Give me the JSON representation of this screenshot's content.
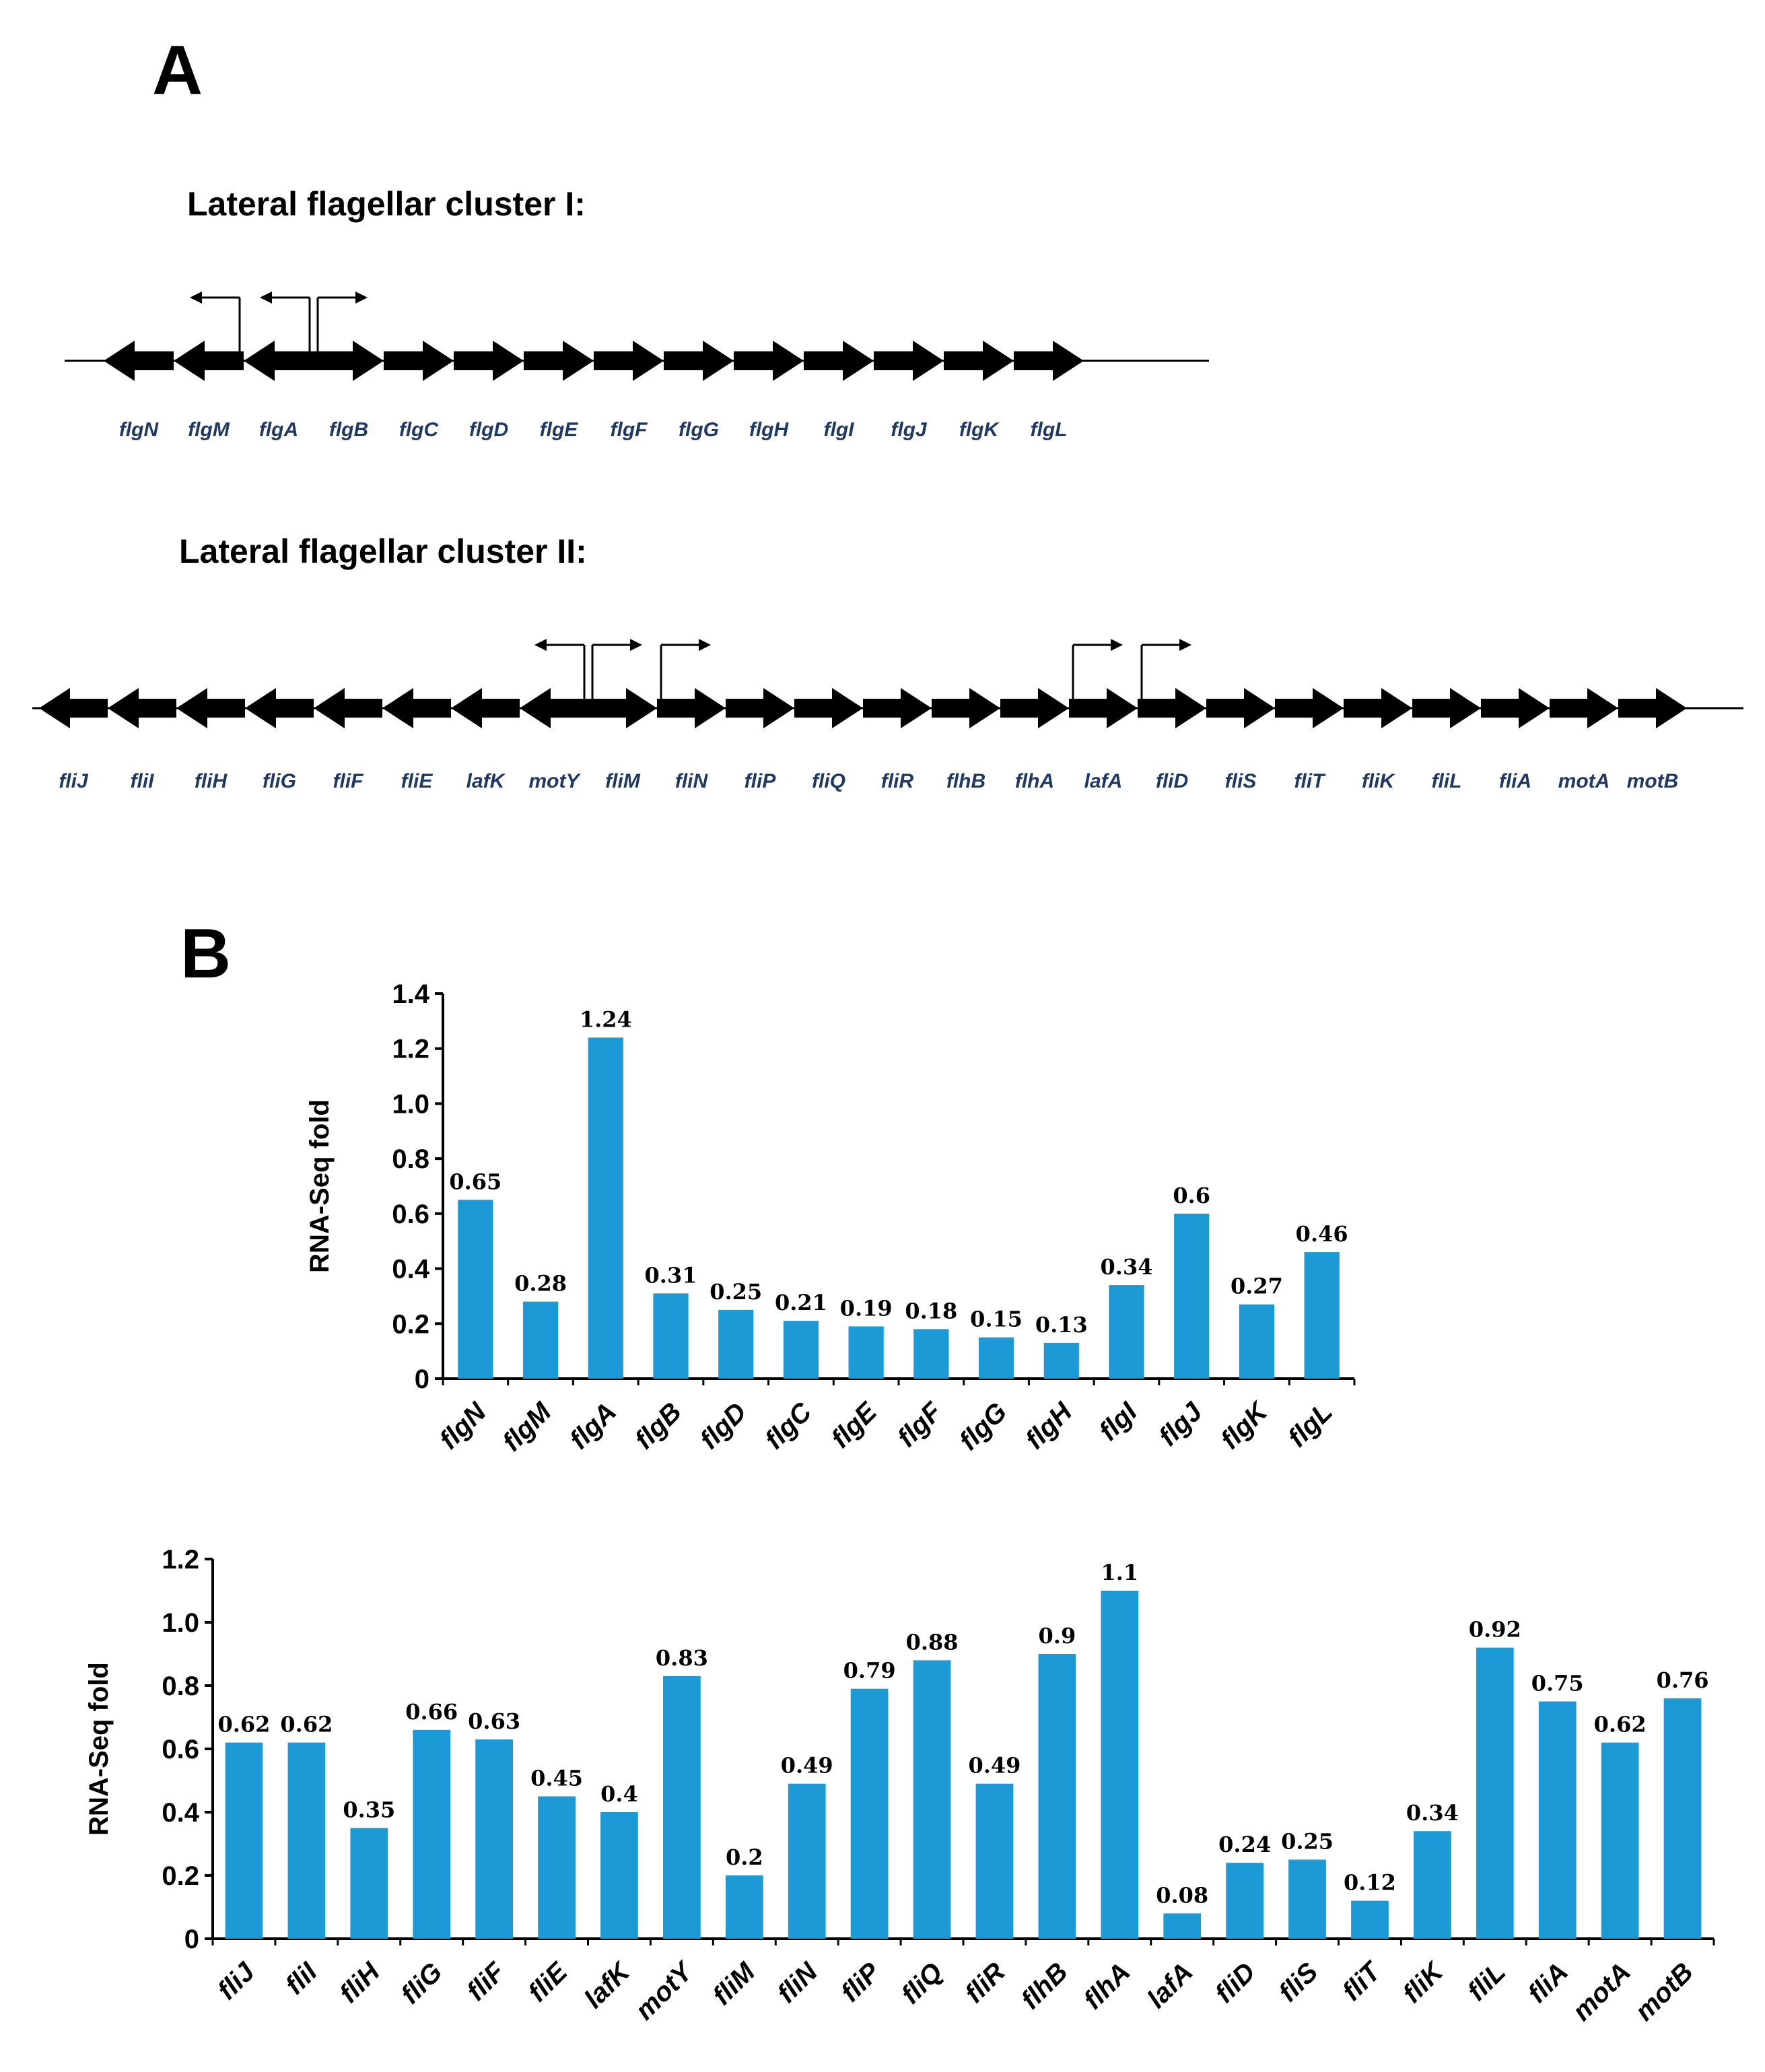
{
  "panel_a": {
    "letter": "A",
    "cluster1": {
      "title": "Lateral flagellar cluster I:",
      "genes": [
        {
          "name": "flgN",
          "dir": "left"
        },
        {
          "name": "flgM",
          "dir": "left"
        },
        {
          "name": "flgA",
          "dir": "left"
        },
        {
          "name": "flgB",
          "dir": "right"
        },
        {
          "name": "flgC",
          "dir": "right"
        },
        {
          "name": "flgD",
          "dir": "right"
        },
        {
          "name": "flgE",
          "dir": "right"
        },
        {
          "name": "flgF",
          "dir": "right"
        },
        {
          "name": "flgG",
          "dir": "right"
        },
        {
          "name": "flgH",
          "dir": "right"
        },
        {
          "name": "flgI",
          "dir": "right"
        },
        {
          "name": "flgJ",
          "dir": "right"
        },
        {
          "name": "flgK",
          "dir": "right"
        },
        {
          "name": "flgL",
          "dir": "right"
        }
      ],
      "promoters": [
        {
          "gene": "flgM",
          "dir": "left"
        },
        {
          "gene": "flgA",
          "dir": "left"
        },
        {
          "gene": "flgB",
          "dir": "right"
        }
      ]
    },
    "cluster2": {
      "title": "Lateral flagellar cluster II:",
      "genes": [
        {
          "name": "fliJ",
          "dir": "left"
        },
        {
          "name": "fliI",
          "dir": "left"
        },
        {
          "name": "fliH",
          "dir": "left"
        },
        {
          "name": "fliG",
          "dir": "left"
        },
        {
          "name": "fliF",
          "dir": "left"
        },
        {
          "name": "fliE",
          "dir": "left"
        },
        {
          "name": "lafK",
          "dir": "left"
        },
        {
          "name": "motY",
          "dir": "left"
        },
        {
          "name": "fliM",
          "dir": "right"
        },
        {
          "name": "fliN",
          "dir": "right"
        },
        {
          "name": "fliP",
          "dir": "right"
        },
        {
          "name": "fliQ",
          "dir": "right"
        },
        {
          "name": "fliR",
          "dir": "right"
        },
        {
          "name": "flhB",
          "dir": "right"
        },
        {
          "name": "flhA",
          "dir": "right"
        },
        {
          "name": "lafA",
          "dir": "right"
        },
        {
          "name": "fliD",
          "dir": "right"
        },
        {
          "name": "fliS",
          "dir": "right"
        },
        {
          "name": "fliT",
          "dir": "right"
        },
        {
          "name": "fliK",
          "dir": "right"
        },
        {
          "name": "fliL",
          "dir": "right"
        },
        {
          "name": "fliA",
          "dir": "right"
        },
        {
          "name": "motA",
          "dir": "right"
        },
        {
          "name": "motB",
          "dir": "right"
        }
      ],
      "promoters": [
        {
          "gene": "motY",
          "dir": "left"
        },
        {
          "gene": "fliM",
          "dir": "right"
        },
        {
          "gene": "fliN",
          "dir": "right"
        },
        {
          "gene": "lafA",
          "dir": "right"
        },
        {
          "gene": "fliD",
          "dir": "right"
        }
      ]
    }
  },
  "panel_b": {
    "letter": "B"
  },
  "chart_data": [
    {
      "type": "bar",
      "title": "",
      "xlabel": "",
      "ylabel": "RNA-Seq fold",
      "ylim": [
        0,
        1.4
      ],
      "yticks": [
        "0",
        "0.2",
        "0.4",
        "0.6",
        "0.8",
        "1.0",
        "1.2",
        "1.4"
      ],
      "categories": [
        "flgN",
        "flgM",
        "flgA",
        "flgB",
        "flgD",
        "flgC",
        "flgE",
        "flgF",
        "flgG",
        "flgH",
        "flgI",
        "flgJ",
        "flgK",
        "flgL"
      ],
      "values": [
        0.65,
        0.28,
        1.24,
        0.31,
        0.25,
        0.21,
        0.19,
        0.18,
        0.15,
        0.13,
        0.34,
        0.6,
        0.27,
        0.46
      ],
      "labels": [
        "0.65",
        "0.28",
        "1.24",
        "0.31",
        "0.25",
        "0.21",
        "0.19",
        "0.18",
        "0.15",
        "0.13",
        "0.34",
        "0.6",
        "0.27",
        "0.46"
      ],
      "color": "#1b9ad6",
      "grid": false
    },
    {
      "type": "bar",
      "title": "",
      "xlabel": "",
      "ylabel": "RNA-Seq fold",
      "ylim": [
        0,
        1.2
      ],
      "yticks": [
        "0",
        "0.2",
        "0.4",
        "0.6",
        "0.8",
        "1.0",
        "1.2"
      ],
      "categories": [
        "fliJ",
        "fliI",
        "fliH",
        "fliG",
        "fliF",
        "fliE",
        "lafK",
        "motY",
        "fliM",
        "fliN",
        "fliP",
        "fliQ",
        "fliR",
        "flhB",
        "flhA",
        "lafA",
        "fliD",
        "fliS",
        "fliT",
        "fliK",
        "fliL",
        "fliA",
        "motA",
        "motB"
      ],
      "values": [
        0.62,
        0.62,
        0.35,
        0.66,
        0.63,
        0.45,
        0.4,
        0.83,
        0.2,
        0.49,
        0.79,
        0.88,
        0.49,
        0.9,
        1.1,
        0.08,
        0.24,
        0.25,
        0.12,
        0.34,
        0.92,
        0.75,
        0.62,
        0.76
      ],
      "labels": [
        "0.62",
        "0.62",
        "0.35",
        "0.66",
        "0.63",
        "0.45",
        "0.4",
        "0.83",
        "0.2",
        "0.49",
        "0.79",
        "0.88",
        "0.49",
        "0.9",
        "1.1",
        "0.08",
        "0.24",
        "0.25",
        "0.12",
        "0.34",
        "0.92",
        "0.75",
        "0.62",
        "0.76"
      ],
      "color": "#1b9ad6",
      "grid": false
    }
  ]
}
